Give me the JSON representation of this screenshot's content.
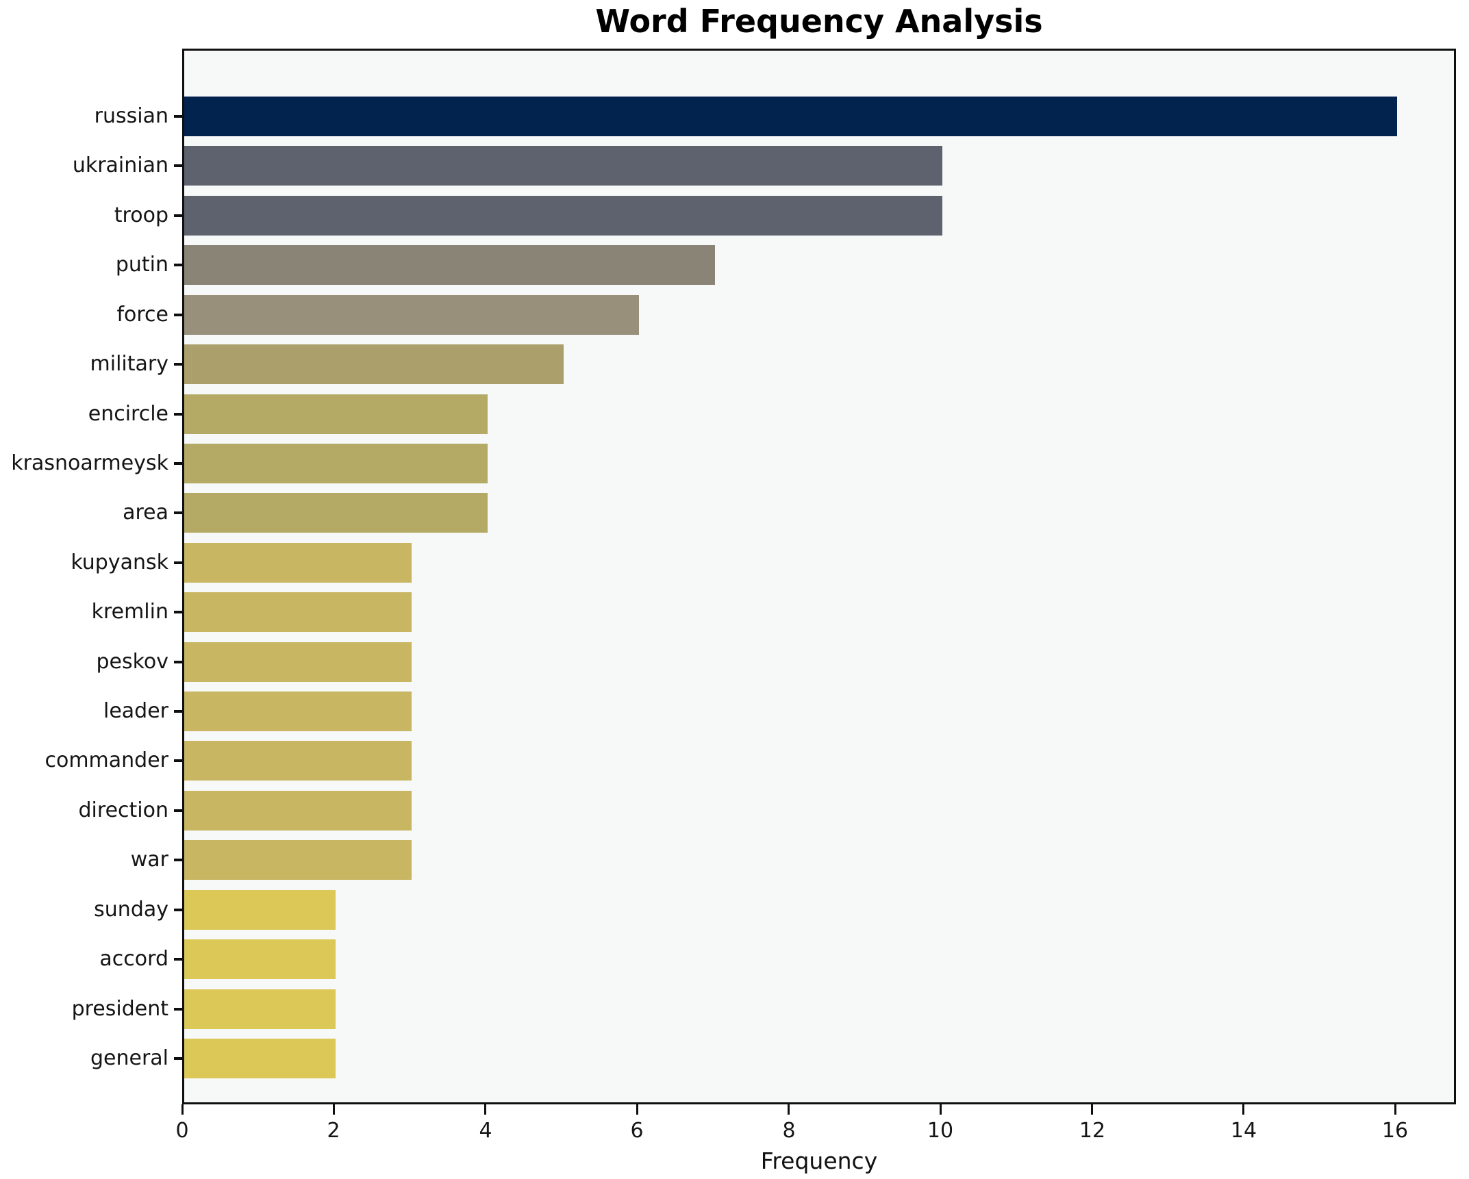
{
  "chart_data": {
    "type": "bar",
    "orientation": "horizontal",
    "title": "Word Frequency Analysis",
    "xlabel": "Frequency",
    "ylabel": "",
    "categories": [
      "russian",
      "ukrainian",
      "troop",
      "putin",
      "force",
      "military",
      "encircle",
      "krasnoarmeysk",
      "area",
      "kupyansk",
      "kremlin",
      "peskov",
      "leader",
      "commander",
      "direction",
      "war",
      "sunday",
      "accord",
      "president",
      "general"
    ],
    "values": [
      16,
      10,
      10,
      7,
      6,
      5,
      4,
      4,
      4,
      3,
      3,
      3,
      3,
      3,
      3,
      3,
      2,
      2,
      2,
      2
    ],
    "bar_colors": [
      "#02234e",
      "#5e626e",
      "#5e626e",
      "#8a8477",
      "#98907a",
      "#aba06c",
      "#b5a966",
      "#b5a966",
      "#b5a966",
      "#c8b662",
      "#c8b662",
      "#c8b662",
      "#c8b662",
      "#c8b662",
      "#c8b662",
      "#c8b662",
      "#dcc857",
      "#dcc857",
      "#dcc857",
      "#dcc857"
    ],
    "x_ticks": [
      0,
      2,
      4,
      6,
      8,
      10,
      12,
      14,
      16
    ],
    "xlim": [
      0,
      16.8
    ],
    "grid": false,
    "legend": null,
    "plot_background": "#f7f8f8",
    "figure_background": "#ffffff",
    "spine_color": "#0f0f0f"
  }
}
